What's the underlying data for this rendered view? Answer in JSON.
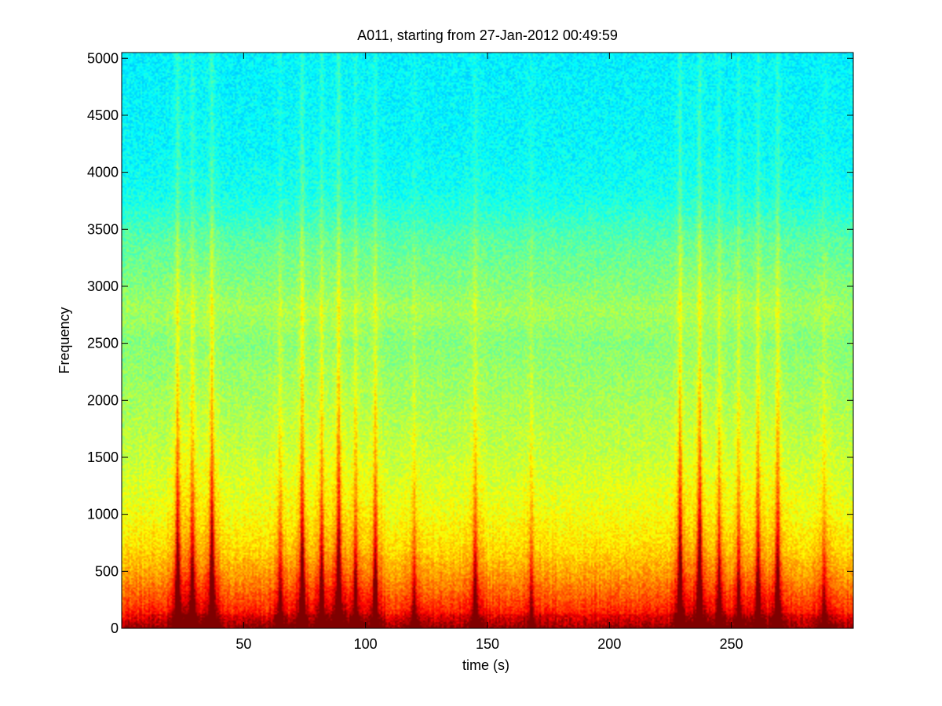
{
  "chart_data": {
    "type": "heatmap",
    "title": "A011, starting from 27-Jan-2012 00:49:59",
    "xlabel": "time (s)",
    "ylabel": "Frequency",
    "xlim": [
      0,
      300
    ],
    "ylim": [
      0,
      5050
    ],
    "x_ticks": [
      50,
      100,
      150,
      200,
      250
    ],
    "y_ticks": [
      0,
      500,
      1000,
      1500,
      2000,
      2500,
      3000,
      3500,
      4000,
      4500,
      5000
    ],
    "colormap": "jet",
    "grid": false,
    "intensity_profile": {
      "description_levels": "relative intensity 0 (blue) to 1 (red)",
      "frequency": [
        0,
        100,
        200,
        400,
        500,
        700,
        1000,
        1500,
        2000,
        2500,
        2800,
        3000,
        3400,
        3600,
        3800,
        4200,
        5050
      ],
      "level": [
        0.92,
        0.84,
        0.79,
        0.72,
        0.69,
        0.64,
        0.6,
        0.56,
        0.53,
        0.5,
        0.53,
        0.5,
        0.46,
        0.42,
        0.39,
        0.37,
        0.36
      ]
    },
    "broadband_events": [
      {
        "time": 23,
        "strength": 0.95
      },
      {
        "time": 29,
        "strength": 0.75
      },
      {
        "time": 37,
        "strength": 1.0
      },
      {
        "time": 65,
        "strength": 0.5
      },
      {
        "time": 74,
        "strength": 0.9
      },
      {
        "time": 82,
        "strength": 0.7
      },
      {
        "time": 89,
        "strength": 1.0
      },
      {
        "time": 96,
        "strength": 0.6
      },
      {
        "time": 104,
        "strength": 0.75
      },
      {
        "time": 120,
        "strength": 0.4
      },
      {
        "time": 145,
        "strength": 0.55
      },
      {
        "time": 168,
        "strength": 0.35
      },
      {
        "time": 229,
        "strength": 0.95
      },
      {
        "time": 237,
        "strength": 1.0
      },
      {
        "time": 245,
        "strength": 0.6
      },
      {
        "time": 253,
        "strength": 0.55
      },
      {
        "time": 261,
        "strength": 0.75
      },
      {
        "time": 269,
        "strength": 0.8
      },
      {
        "time": 288,
        "strength": 0.4
      }
    ]
  }
}
